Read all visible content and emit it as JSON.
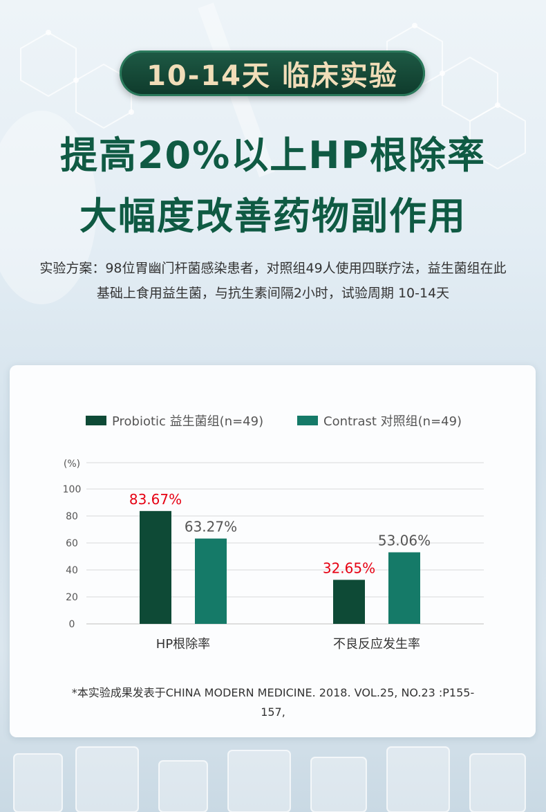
{
  "header": {
    "badge": "10-14天 临床实验",
    "headline_1": "提高20%以上HP根除率",
    "headline_2": "大幅度改善药物副作用",
    "description": "实验方案：98位胃幽门杆菌感染患者，对照组49人使用四联疗法，益生菌组在此基础上食用益生菌，与抗生素间隔2小时，试验周期 10-14天"
  },
  "colors": {
    "probiotic": "#0e4a36",
    "contrast": "#157a68",
    "highlight_label": "#e60012",
    "normal_label": "#555555",
    "headline": "#0f5a43"
  },
  "chart_data": {
    "type": "bar",
    "ylabel": "(%)",
    "ylim": [
      0,
      100
    ],
    "yticks": [
      0,
      20,
      40,
      60,
      80,
      100
    ],
    "categories": [
      "HP根除率",
      "不良反应发生率"
    ],
    "series": [
      {
        "name": "Probiotic 益生菌组(n=49)",
        "values": [
          83.67,
          32.65
        ],
        "labels": [
          "83.67%",
          "32.65%"
        ]
      },
      {
        "name": "Contrast 对照组(n=49)",
        "values": [
          63.27,
          53.06
        ],
        "labels": [
          "63.27%",
          "53.06%"
        ]
      }
    ],
    "grid": true,
    "legend": "top"
  },
  "footnote": "*本实验成果发表于CHINA MODERN MEDICINE. 2018. VOL.25, NO.23 :P155-157,"
}
